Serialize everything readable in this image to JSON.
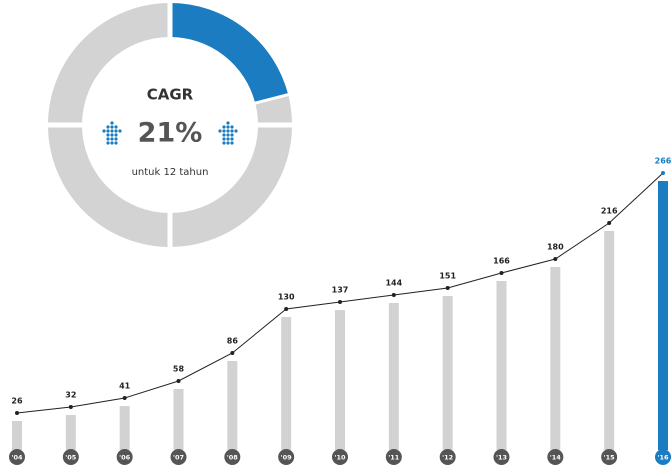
{
  "chart_data": [
    {
      "type": "donut",
      "title": "CAGR",
      "value": 21,
      "value_label": "21%",
      "subtitle": "untuk 12 tahun",
      "color": "#1b7cc1",
      "track_color": "#d3d3d3"
    },
    {
      "type": "bar",
      "categories": [
        "'04",
        "'05",
        "'06",
        "'07",
        "'08",
        "'09",
        "'10",
        "'11",
        "'12",
        "'13",
        "'14",
        "'15",
        "'16"
      ],
      "values": [
        26,
        32,
        41,
        58,
        86,
        130,
        137,
        144,
        151,
        166,
        180,
        216,
        266
      ],
      "bar_colors": [
        "#d2d2d2",
        "#d2d2d2",
        "#d2d2d2",
        "#d2d2d2",
        "#d2d2d2",
        "#d2d2d2",
        "#d2d2d2",
        "#d2d2d2",
        "#d2d2d2",
        "#d2d2d2",
        "#d2d2d2",
        "#d2d2d2",
        "#1b7cc1"
      ],
      "label_colors": [
        "#222",
        "#222",
        "#222",
        "#222",
        "#222",
        "#222",
        "#222",
        "#222",
        "#222",
        "#222",
        "#222",
        "#222",
        "#1b7cc1"
      ],
      "line_color": "#222"
    }
  ]
}
